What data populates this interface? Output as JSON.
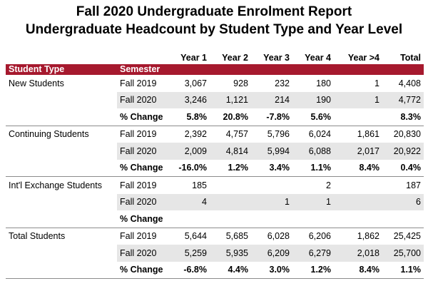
{
  "title_line1": "Fall 2020 Undergraduate Enrolment Report",
  "title_line2": "Undergraduate Headcount by Student Type and Year Level",
  "columns": [
    "Year 1",
    "Year 2",
    "Year 3",
    "Year 4",
    "Year >4",
    "Total"
  ],
  "header": {
    "student_type": "Student Type",
    "semester": "Semester"
  },
  "groups": [
    {
      "type": "New Students",
      "rows": [
        {
          "semester": "Fall 2019",
          "values": [
            "3,067",
            "928",
            "232",
            "180",
            "1",
            "4,408"
          ]
        },
        {
          "semester": "Fall 2020",
          "values": [
            "3,246",
            "1,121",
            "214",
            "190",
            "1",
            "4,772"
          ]
        },
        {
          "semester": "% Change",
          "values": [
            "5.8%",
            "20.8%",
            "-7.8%",
            "5.6%",
            "",
            "8.3%"
          ]
        }
      ]
    },
    {
      "type": "Continuing Students",
      "rows": [
        {
          "semester": "Fall 2019",
          "values": [
            "2,392",
            "4,757",
            "5,796",
            "6,024",
            "1,861",
            "20,830"
          ]
        },
        {
          "semester": "Fall 2020",
          "values": [
            "2,009",
            "4,814",
            "5,994",
            "6,088",
            "2,017",
            "20,922"
          ]
        },
        {
          "semester": "% Change",
          "values": [
            "-16.0%",
            "1.2%",
            "3.4%",
            "1.1%",
            "8.4%",
            "0.4%"
          ]
        }
      ]
    },
    {
      "type": "Int'l Exchange Students",
      "rows": [
        {
          "semester": "Fall 2019",
          "values": [
            "185",
            "",
            "",
            "2",
            "",
            "187"
          ]
        },
        {
          "semester": "Fall 2020",
          "values": [
            "4",
            "",
            "1",
            "1",
            "",
            "6"
          ]
        },
        {
          "semester": "% Change",
          "values": [
            "",
            "",
            "",
            "",
            "",
            ""
          ]
        }
      ]
    },
    {
      "type": "Total Students",
      "rows": [
        {
          "semester": "Fall 2019",
          "values": [
            "5,644",
            "5,685",
            "6,028",
            "6,206",
            "1,862",
            "25,425"
          ]
        },
        {
          "semester": "Fall 2020",
          "values": [
            "5,259",
            "5,935",
            "6,209",
            "6,279",
            "2,018",
            "25,700"
          ]
        },
        {
          "semester": "% Change",
          "values": [
            "-6.8%",
            "4.4%",
            "3.0%",
            "1.2%",
            "8.4%",
            "1.1%"
          ]
        }
      ]
    }
  ],
  "colors": {
    "header_red": "#a6192e",
    "row_shade": "#e6e6e6"
  }
}
